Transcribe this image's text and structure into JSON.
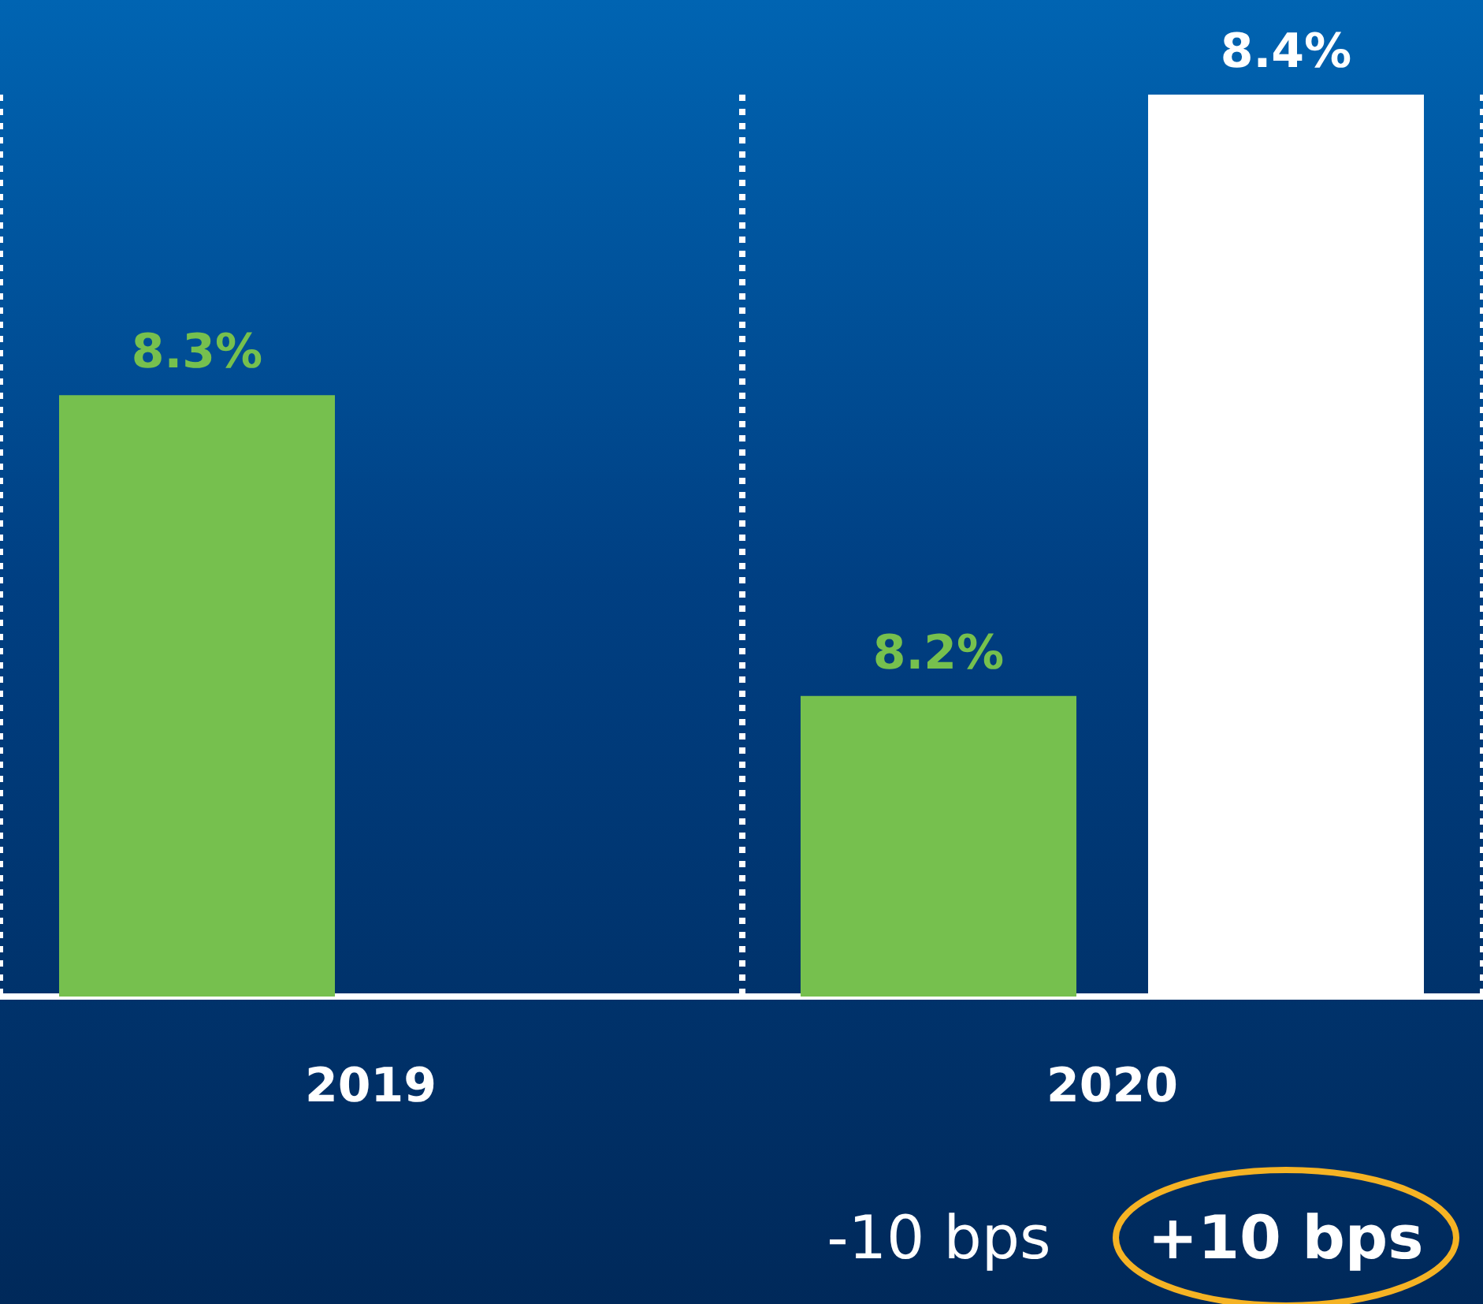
{
  "chart_data": {
    "type": "bar",
    "categories": [
      "2019",
      "2020"
    ],
    "series": [
      {
        "color": "#76c04e",
        "values": [
          8.3,
          8.2
        ],
        "value_labels": [
          "8.3%",
          "8.2%"
        ]
      },
      {
        "color": "#ffffff",
        "values": [
          null,
          8.4
        ],
        "value_labels": [
          null,
          "8.4%"
        ]
      }
    ],
    "ylim": [
      8.1,
      8.4
    ],
    "tick_labels": "x",
    "grid": "x",
    "annotations": [
      "-10 bps",
      "+10 bps"
    ]
  }
}
